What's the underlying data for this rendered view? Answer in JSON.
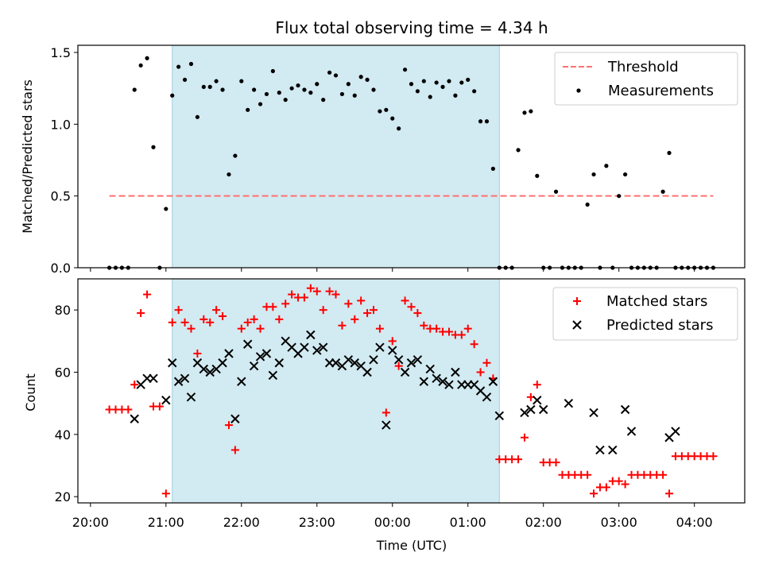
{
  "figure_title": "Flux total observing time = 4.34 h",
  "colors": {
    "threshold": "#ff7070",
    "measurements": "#000000",
    "matched": "#ff0000",
    "predicted": "#000000",
    "shade": "#add8e6"
  },
  "chart_data": [
    {
      "type": "scatter",
      "panel": "top",
      "ylabel": "Matched/Predicted stars",
      "ylim": [
        0,
        1.55
      ],
      "y_ticks": [
        0.0,
        0.5,
        1.0,
        1.5
      ],
      "y_tick_labels": [
        "0.0",
        "0.5",
        "1.0",
        "1.5"
      ],
      "x_unit": "hours since 20:00 UTC",
      "shaded_interval": [
        "21:05",
        "01:25"
      ],
      "legend": [
        "Threshold",
        "Measurements"
      ],
      "legend_position": "upper right",
      "threshold": {
        "name": "Threshold",
        "value": 0.5,
        "x_range": [
          "20:15",
          "04:15"
        ],
        "style": "dashed"
      },
      "series": [
        {
          "name": "Measurements",
          "marker": "dot",
          "x": [
            "20:15",
            "20:20",
            "20:25",
            "20:30",
            "20:35",
            "20:40",
            "20:45",
            "20:50",
            "20:55",
            "21:00",
            "21:05",
            "21:10",
            "21:15",
            "21:20",
            "21:25",
            "21:30",
            "21:35",
            "21:40",
            "21:45",
            "21:50",
            "21:55",
            "22:00",
            "22:05",
            "22:10",
            "22:15",
            "22:20",
            "22:25",
            "22:30",
            "22:35",
            "22:40",
            "22:45",
            "22:50",
            "22:55",
            "23:00",
            "23:05",
            "23:10",
            "23:15",
            "23:20",
            "23:25",
            "23:30",
            "23:35",
            "23:40",
            "23:45",
            "23:50",
            "23:55",
            "00:00",
            "00:05",
            "00:10",
            "00:15",
            "00:20",
            "00:25",
            "00:30",
            "00:35",
            "00:40",
            "00:45",
            "00:50",
            "00:55",
            "01:00",
            "01:05",
            "01:10",
            "01:15",
            "01:20",
            "01:25",
            "01:30",
            "01:35",
            "01:40",
            "01:45",
            "01:50",
            "01:55",
            "02:00",
            "02:05",
            "02:10",
            "02:15",
            "02:20",
            "02:25",
            "02:30",
            "02:35",
            "02:40",
            "02:45",
            "02:50",
            "02:55",
            "03:00",
            "03:05",
            "03:10",
            "03:15",
            "03:20",
            "03:25",
            "03:30",
            "03:35",
            "03:40",
            "03:45",
            "03:50",
            "03:55",
            "04:00",
            "04:05",
            "04:10",
            "04:15"
          ],
          "y": [
            0.0,
            0.0,
            0.0,
            0.0,
            1.24,
            1.41,
            1.46,
            0.84,
            0.0,
            0.41,
            1.2,
            1.4,
            1.31,
            1.42,
            1.05,
            1.26,
            1.26,
            1.3,
            1.24,
            0.65,
            0.78,
            1.3,
            1.1,
            1.24,
            1.14,
            1.21,
            1.37,
            1.22,
            1.17,
            1.25,
            1.27,
            1.24,
            1.22,
            1.28,
            1.17,
            1.36,
            1.34,
            1.21,
            1.28,
            1.2,
            1.33,
            1.31,
            1.24,
            1.09,
            1.1,
            1.04,
            0.97,
            1.38,
            1.28,
            1.23,
            1.3,
            1.19,
            1.29,
            1.26,
            1.3,
            1.2,
            1.29,
            1.31,
            1.23,
            1.02,
            1.02,
            0.69,
            0.0,
            0.0,
            0.0,
            0.82,
            1.08,
            1.09,
            0.64,
            0.0,
            0.0,
            0.53,
            0.0,
            0.0,
            0.0,
            0.0,
            0.44,
            0.65,
            0.0,
            0.71,
            0.0,
            0.5,
            0.65,
            0.0,
            0.0,
            0.0,
            0.0,
            0.0,
            0.53,
            0.8,
            0.0,
            0.0,
            0.0,
            0.0,
            0.0,
            0.0,
            0.0
          ]
        }
      ]
    },
    {
      "type": "scatter",
      "panel": "bottom",
      "xlabel": "Time (UTC)",
      "ylabel": "Count",
      "ylim": [
        18,
        90
      ],
      "y_ticks": [
        20,
        40,
        60,
        80
      ],
      "y_tick_labels": [
        "20",
        "40",
        "60",
        "80"
      ],
      "x_unit": "hours since 20:00 UTC",
      "xlim": [
        "19:50",
        "04:40"
      ],
      "x_ticks": [
        "20:00",
        "21:00",
        "22:00",
        "23:00",
        "00:00",
        "01:00",
        "02:00",
        "03:00",
        "04:00"
      ],
      "shaded_interval": [
        "21:05",
        "01:25"
      ],
      "legend": [
        "Matched stars",
        "Predicted stars"
      ],
      "legend_position": "upper right",
      "series": [
        {
          "name": "Matched stars",
          "marker": "plus",
          "x": [
            "20:15",
            "20:20",
            "20:25",
            "20:30",
            "20:35",
            "20:40",
            "20:45",
            "20:50",
            "20:55",
            "21:00",
            "21:05",
            "21:10",
            "21:15",
            "21:20",
            "21:25",
            "21:30",
            "21:35",
            "21:40",
            "21:45",
            "21:50",
            "21:55",
            "22:00",
            "22:05",
            "22:10",
            "22:15",
            "22:20",
            "22:25",
            "22:30",
            "22:35",
            "22:40",
            "22:45",
            "22:50",
            "22:55",
            "23:00",
            "23:05",
            "23:10",
            "23:15",
            "23:20",
            "23:25",
            "23:30",
            "23:35",
            "23:40",
            "23:45",
            "23:50",
            "23:55",
            "00:00",
            "00:05",
            "00:10",
            "00:15",
            "00:20",
            "00:25",
            "00:30",
            "00:35",
            "00:40",
            "00:45",
            "00:50",
            "00:55",
            "01:00",
            "01:05",
            "01:10",
            "01:15",
            "01:20",
            "01:25",
            "01:30",
            "01:35",
            "01:40",
            "01:45",
            "01:50",
            "01:55",
            "02:00",
            "02:05",
            "02:10",
            "02:15",
            "02:20",
            "02:25",
            "02:30",
            "02:35",
            "02:40",
            "02:45",
            "02:50",
            "02:55",
            "03:00",
            "03:05",
            "03:10",
            "03:15",
            "03:20",
            "03:25",
            "03:30",
            "03:35",
            "03:40",
            "03:45",
            "03:50",
            "03:55",
            "04:00",
            "04:05",
            "04:10",
            "04:15"
          ],
          "y": [
            48,
            48,
            48,
            48,
            56,
            79,
            85,
            49,
            49,
            21,
            76,
            80,
            76,
            74,
            66,
            77,
            76,
            80,
            78,
            43,
            35,
            74,
            76,
            77,
            74,
            81,
            81,
            77,
            82,
            85,
            84,
            84,
            87,
            86,
            80,
            86,
            85,
            75,
            82,
            77,
            83,
            79,
            80,
            74,
            47,
            70,
            62,
            83,
            81,
            79,
            75,
            74,
            74,
            73,
            73,
            72,
            72,
            74,
            69,
            60,
            63,
            58,
            32,
            32,
            32,
            32,
            39,
            52,
            56,
            31,
            31,
            31,
            27,
            27,
            27,
            27,
            27,
            21,
            23,
            23,
            25,
            25,
            24,
            27,
            27,
            27,
            27,
            27,
            27,
            21,
            33,
            33,
            33,
            33,
            33,
            33,
            33
          ]
        },
        {
          "name": "Predicted stars",
          "marker": "x",
          "x": [
            "20:35",
            "20:40",
            "20:45",
            "20:50",
            "21:00",
            "21:05",
            "21:10",
            "21:15",
            "21:20",
            "21:25",
            "21:30",
            "21:35",
            "21:40",
            "21:45",
            "21:50",
            "21:55",
            "22:00",
            "22:05",
            "22:10",
            "22:15",
            "22:20",
            "22:25",
            "22:30",
            "22:35",
            "22:40",
            "22:45",
            "22:50",
            "22:55",
            "23:00",
            "23:05",
            "23:10",
            "23:15",
            "23:20",
            "23:25",
            "23:30",
            "23:35",
            "23:40",
            "23:45",
            "23:50",
            "23:55",
            "00:00",
            "00:05",
            "00:10",
            "00:15",
            "00:20",
            "00:25",
            "00:30",
            "00:35",
            "00:40",
            "00:45",
            "00:50",
            "00:55",
            "01:00",
            "01:05",
            "01:10",
            "01:15",
            "01:20",
            "01:25",
            "01:45",
            "01:50",
            "01:55",
            "02:00",
            "02:20",
            "02:40",
            "02:45",
            "02:55",
            "03:05",
            "03:10",
            "03:40",
            "03:45"
          ],
          "y": [
            45,
            56,
            58,
            58,
            51,
            63,
            57,
            58,
            52,
            63,
            61,
            60,
            61,
            63,
            66,
            45,
            57,
            69,
            62,
            65,
            66,
            59,
            63,
            70,
            68,
            66,
            68,
            72,
            67,
            68,
            63,
            63,
            62,
            64,
            63,
            62,
            60,
            64,
            68,
            43,
            67,
            64,
            60,
            63,
            64,
            57,
            61,
            58,
            57,
            56,
            60,
            56,
            56,
            56,
            54,
            52,
            57,
            46,
            47,
            48,
            51,
            48,
            50,
            47,
            35,
            35,
            48,
            41,
            39,
            41
          ]
        }
      ]
    }
  ]
}
